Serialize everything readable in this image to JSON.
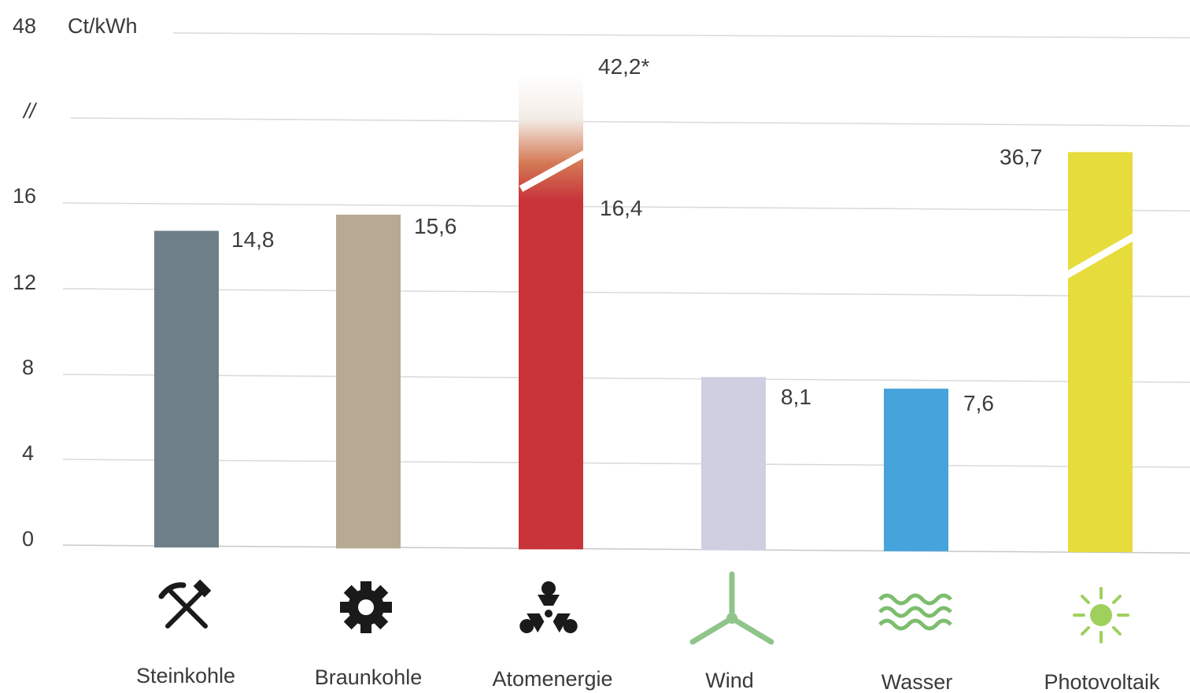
{
  "chart_data": {
    "type": "bar",
    "unit_label": "Ct/kWh",
    "y_ticks": [
      "0",
      "4",
      "8",
      "12",
      "16",
      "//",
      "48"
    ],
    "categories": [
      "Steinkohle",
      "Braunkohle",
      "Atomenergie",
      "Wind",
      "Wasser",
      "Photovoltaik"
    ],
    "values": [
      14.8,
      15.6,
      42.2,
      8.1,
      7.6,
      36.7
    ],
    "value_labels": [
      "14,8",
      "15,6",
      "42,2*",
      "8,1",
      "7,6",
      "36,7"
    ],
    "secondary_labels": {
      "Atomenergie": "16,4"
    },
    "atomenergie_value_at_break": 16.4,
    "axis_break": "//",
    "colors": [
      "#6e7f88",
      "#b8a992",
      "#c8343a",
      "#cfcfe2",
      "#47a3dc",
      "#e6dc3c"
    ],
    "icons": [
      "pickaxe-hammer-icon",
      "gear-icon",
      "radiation-icon",
      "wind-turbine-icon",
      "water-waves-icon",
      "sun-icon"
    ],
    "grid": true,
    "legend": "none"
  }
}
